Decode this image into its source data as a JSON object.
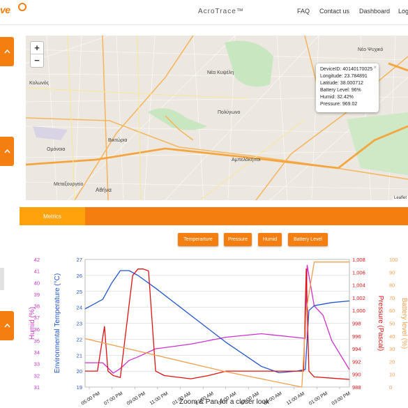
{
  "header": {
    "logo_text": "ve",
    "brand": "AcroTrace™",
    "nav": [
      "FAQ",
      "Contact us",
      "Dashboard",
      "Logout"
    ],
    "accent": "#f47f10"
  },
  "map": {
    "zoom_in": "+",
    "zoom_out": "−",
    "popup": {
      "device": "DeviceID: 40140170025",
      "longitude": "Longitude: 23.784891",
      "latitude": "Latitude: 38.000712",
      "battery": "Battery Level: 96%",
      "humid": "Humid: 32.42%",
      "pressure": "Pressure: 969.02"
    },
    "labels": [
      "Νέα Κυψέλη",
      "Αθήνα",
      "Αμπελόκηποι",
      "Κολωνός",
      "Βικτώρια",
      "Μεταξουργείο",
      "Πολύγωνο",
      "Νέο Ψυχικό",
      "Ομόνοια"
    ],
    "attribution": "Leaflet"
  },
  "tabs": {
    "metrics": "Metrics"
  },
  "buttons": {
    "temperature": "Temperarture",
    "pressure": "Pressure",
    "humid": "Humid",
    "battery": "Battery Level"
  },
  "chart_data": {
    "type": "line",
    "xlabel": "Zoom & Pan for a closer look",
    "x_ticks": [
      "05:00 PM",
      "07:00 PM",
      "09:00 PM",
      "11:00 PM",
      "01:00 AM",
      "03:00 AM",
      "05:00 AM",
      "07:00 AM",
      "09:00 AM",
      "11:00 AM",
      "01:00 PM",
      "03:00 PM"
    ],
    "axes": {
      "humid": {
        "label": "Humid (%)",
        "range": [
          31,
          42
        ],
        "ticks": [
          31,
          32,
          33,
          34,
          35,
          36,
          37,
          38,
          39,
          40,
          41,
          42
        ],
        "color": "#cc33cc"
      },
      "temperature": {
        "label": "Environmental Temperature (°C)",
        "range": [
          19,
          27
        ],
        "ticks": [
          19,
          20,
          21,
          22,
          23,
          24,
          25,
          26,
          27
        ],
        "color": "#2255cc"
      },
      "pressure": {
        "label": "Pressure (Pascal)",
        "range": [
          988,
          1008
        ],
        "ticks": [
          "988",
          "990",
          "992",
          "994",
          "996",
          "998",
          "1,000",
          "1,002",
          "1,004",
          "1,006",
          "1,008"
        ],
        "color": "#dd1111"
      },
      "battery": {
        "label": "Battery level (%)",
        "range": [
          0,
          100
        ],
        "ticks": [
          0,
          10,
          20,
          30,
          40,
          50,
          60,
          70,
          80,
          90,
          100
        ],
        "color": "#f0a050"
      }
    },
    "series": [
      {
        "name": "Humid",
        "axis": "humid",
        "x": [
          0,
          1,
          1.6,
          2,
          2.5,
          3,
          4,
          6,
          8,
          10,
          12.5,
          12.6,
          13,
          13.5,
          14,
          14.6,
          15
        ],
        "y": [
          33.1,
          33.1,
          32.2,
          32.6,
          33.3,
          33.6,
          34.3,
          34.7,
          35.3,
          35.6,
          35.2,
          41.5,
          38,
          37.2,
          35,
          33.5,
          32.5
        ]
      },
      {
        "name": "Temperature",
        "axis": "temperature",
        "x": [
          0,
          1,
          1.5,
          2,
          2.5,
          3,
          4,
          6,
          8,
          10,
          11,
          12,
          12.5,
          12.7,
          13,
          14,
          15
        ],
        "y": [
          23.9,
          24.5,
          25.5,
          26.3,
          26.3,
          26,
          25.2,
          23.5,
          21.8,
          20.3,
          19.9,
          20,
          20.1,
          23.8,
          24.1,
          24.3,
          24.4
        ]
      },
      {
        "name": "Pressure",
        "axis": "pressure",
        "x": [
          0,
          0.7,
          1.1,
          1.3,
          1.6,
          2,
          2.7,
          3,
          3.3,
          3.6,
          4,
          4.5,
          6,
          7,
          8,
          10,
          12.4,
          12.55,
          12.7,
          13,
          14,
          15
        ],
        "y": [
          990.5,
          990.5,
          997.5,
          990.5,
          989.8,
          989.5,
          1005.5,
          1006.5,
          1006.5,
          1006.2,
          990.5,
          989.8,
          989.3,
          989.8,
          990.5,
          990.5,
          990.5,
          1006.5,
          990.5,
          989.6,
          989.4,
          989.2
        ]
      },
      {
        "name": "Battery level",
        "axis": "battery",
        "x": [
          0,
          4,
          8,
          12.3,
          12.55,
          13,
          13.8,
          15
        ],
        "y": [
          38,
          25,
          12,
          0,
          60,
          98,
          98,
          98
        ]
      }
    ],
    "x_range": [
      0,
      15
    ]
  }
}
